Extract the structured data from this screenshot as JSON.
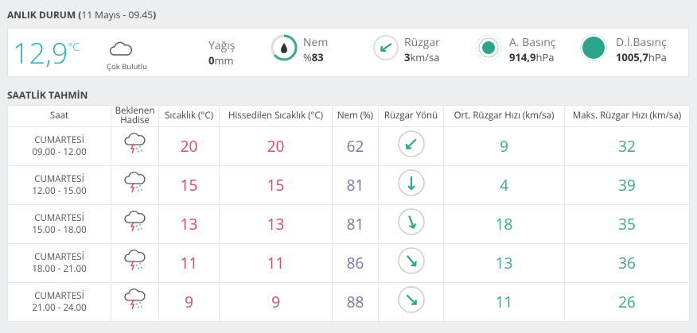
{
  "header": {
    "title": "ANLIK DURUM (",
    "date": "11 Mayıs - 09.45",
    "close": ")"
  },
  "current": {
    "temperature": "12,9",
    "temperature_unit": "°C",
    "condition": "Çok Bulutlu",
    "items": [
      {
        "label": "Yağış",
        "prefix": "",
        "value": "0",
        "unit": "mm"
      },
      {
        "label": "Nem",
        "prefix": "%",
        "value": "83",
        "unit": ""
      },
      {
        "label": "Rüzgar",
        "prefix": "",
        "value": "3",
        "unit": "km/sa"
      },
      {
        "label": "A. Basınç",
        "prefix": "",
        "value": "914,9",
        "unit": "hPa"
      },
      {
        "label": "D.İ.Basınç",
        "prefix": "",
        "value": "1005,7",
        "unit": "hPa"
      }
    ]
  },
  "forecast": {
    "title": "SAATLİK TAHMİN",
    "columns": [
      "Saat",
      "Beklenen Hadise",
      "Sıcaklık (°C)",
      "Hissedilen Sıcaklık (°C)",
      "Nem (%)",
      "Rüzgar Yönü",
      "Ort. Rüzgar Hızı (km/sa)",
      "Maks. Rüzgar Hızı (km/sa)"
    ],
    "rows": [
      {
        "day": "CUMARTESİ",
        "time": "09.00 - 12.00",
        "temp": 20,
        "feels": 20,
        "humidity": 62,
        "wind": 9,
        "wind_max": 32
      },
      {
        "day": "CUMARTESİ",
        "time": "12.00 - 15.00",
        "temp": 15,
        "feels": 15,
        "humidity": 81,
        "wind": 4,
        "wind_max": 39
      },
      {
        "day": "CUMARTESİ",
        "time": "15.00 - 18.00",
        "temp": 13,
        "feels": 13,
        "humidity": 81,
        "wind": 18,
        "wind_max": 35
      },
      {
        "day": "CUMARTESİ",
        "time": "18.00 - 21.00",
        "temp": 11,
        "feels": 11,
        "humidity": 86,
        "wind": 13,
        "wind_max": 36
      },
      {
        "day": "CUMARTESİ",
        "time": "21.00 - 24.00",
        "temp": 9,
        "feels": 9,
        "humidity": 88,
        "wind": 11,
        "wind_max": 26
      }
    ]
  }
}
